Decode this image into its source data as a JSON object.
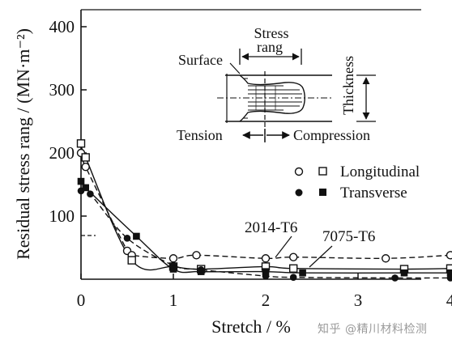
{
  "chart_data": {
    "type": "scatter",
    "xlabel": "Stretch  /  %",
    "ylabel": "Residual stress rang / (MN·m⁻²)",
    "xlim": [
      0,
      4.3
    ],
    "ylim": [
      0,
      420
    ],
    "x_ticks": [
      "0",
      "1",
      "2",
      "3",
      "4"
    ],
    "x_tick_values": [
      0,
      1,
      2,
      3,
      4
    ],
    "y_ticks": [
      "100",
      "200",
      "300",
      "400"
    ],
    "y_tick_values": [
      100,
      200,
      300,
      400
    ],
    "grid": false,
    "legend": {
      "placement": "right",
      "entries": [
        {
          "label": "Longitudinal",
          "markers": [
            "open-circle",
            "open-square"
          ]
        },
        {
          "label": "Transverse",
          "markers": [
            "filled-circle",
            "filled-square"
          ]
        }
      ]
    },
    "annotations": [
      "2014-T6",
      "7075-T6"
    ],
    "series": [
      {
        "alloy": "2014-T6",
        "direction": "Longitudinal",
        "marker": "open-circle",
        "line": "dashed",
        "x": [
          0,
          0.05,
          0.5,
          0.55,
          1,
          1.25,
          2,
          2.3,
          3.3,
          4
        ],
        "y": [
          200,
          178,
          45,
          38,
          33,
          38,
          33,
          35,
          33,
          38
        ]
      },
      {
        "alloy": "7075-T6",
        "direction": "Longitudinal",
        "marker": "open-square",
        "line": "solid",
        "x": [
          0,
          0.05,
          0.55,
          1,
          1.3,
          2,
          2.3,
          3.5,
          4
        ],
        "y": [
          215,
          193,
          30,
          20,
          16,
          20,
          17,
          16,
          17
        ]
      },
      {
        "alloy": "2014-T6",
        "direction": "Transverse",
        "marker": "filled-circle",
        "line": "dashed",
        "x": [
          0,
          0.1,
          0.5,
          1,
          1.3,
          2,
          2.3,
          3.4,
          4
        ],
        "y": [
          140,
          135,
          65,
          22,
          15,
          5,
          3,
          2,
          2
        ]
      },
      {
        "alloy": "7075-T6",
        "direction": "Transverse",
        "marker": "filled-square",
        "line": "solid",
        "x": [
          0,
          0.05,
          0.6,
          1,
          1.3,
          2,
          2.4,
          3.5,
          4
        ],
        "y": [
          155,
          145,
          68,
          16,
          12,
          12,
          10,
          10,
          10
        ]
      }
    ],
    "inset": {
      "labels": {
        "stress": "Stress",
        "rang": "rang",
        "surface": "Surface",
        "thickness": "Thickness",
        "tension": "Tension",
        "compression": "Compression"
      }
    }
  },
  "watermark": "知乎 @精川材料检测"
}
